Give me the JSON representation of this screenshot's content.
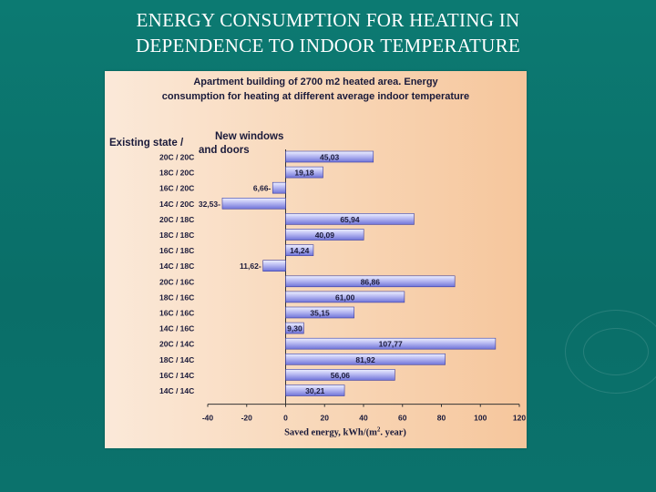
{
  "slide": {
    "title_line1": "ENERGY CONSUMPTION FOR HEATING IN",
    "title_line2": "DEPENDENCE TO INDOOR TEMPERATURE"
  },
  "colors": {
    "background": "#0b736c",
    "bar_fill": "#8c8fe6",
    "bar_light": "#eef0ff",
    "panel": "#f8d6b6",
    "text": "#1a1a3a"
  },
  "chart_data": {
    "type": "bar",
    "orientation": "horizontal",
    "title_line1": "Apartment building of 2700 m2 heated area.  Energy",
    "title_line2": "consumption for heating at different average indoor temperature",
    "row_header_line1": "Existing state /",
    "col_header_line1": "New windows",
    "col_header_line2": "and doors",
    "xlabel": "Saved energy, kWh/(m",
    "xlabel_sup": "2",
    "xlabel_tail": ". year)",
    "xlim": [
      -40,
      120
    ],
    "xticks": [
      -40,
      -20,
      0,
      20,
      40,
      60,
      80,
      100,
      120
    ],
    "categories": [
      "20C / 20C",
      "18C / 20C",
      "16C / 20C",
      "14C / 20C",
      "20C / 18C",
      "18C / 18C",
      "16C / 18C",
      "14C / 18C",
      "20C / 16C",
      "18C / 16C",
      "16C / 16C",
      "14C / 16C",
      "20C / 14C",
      "18C / 14C",
      "16C / 14C",
      "14C / 14C"
    ],
    "values": [
      45.03,
      19.18,
      -6.66,
      -32.53,
      65.94,
      40.09,
      14.24,
      -11.62,
      86.86,
      61.0,
      35.15,
      9.3,
      107.77,
      81.92,
      56.06,
      30.21
    ],
    "labels": [
      "45,03",
      "19,18",
      "6,66-",
      "32,53-",
      "65,94",
      "40,09",
      "14,24",
      "11,62-",
      "86,86",
      "61,00",
      "35,15",
      "9,30",
      "107,77",
      "81,92",
      "56,06",
      "30,21"
    ]
  }
}
